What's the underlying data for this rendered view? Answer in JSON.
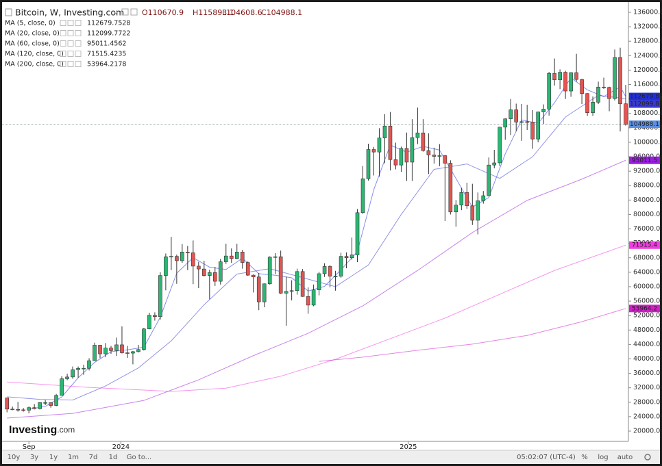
{
  "header": {
    "title": "Bitcoin, W, Investing.com",
    "ohlc_labels": [
      "O",
      "H",
      "L",
      "C"
    ]
  },
  "chart_data": {
    "type": "candlestick",
    "open": [
      29200,
      26100,
      26000,
      25900,
      25800,
      26500,
      26200,
      27900,
      27900,
      27100,
      29900,
      34500,
      35000,
      37000,
      37400,
      37400,
      39500,
      43800,
      41400,
      43000,
      42300,
      43900,
      41700,
      41600,
      42000,
      42600,
      48300,
      52100,
      51700,
      63100,
      68300,
      68400,
      67200,
      69600,
      69400,
      65700,
      64900,
      63100,
      63900,
      61500,
      66900,
      68500,
      67800,
      69600,
      66700,
      63200,
      62700,
      55800,
      60800,
      68200,
      68300,
      58200,
      58700,
      58900,
      64200,
      57300,
      54900,
      59100,
      63600,
      65600,
      62900,
      62900,
      68400,
      68000,
      68800,
      80500,
      89900,
      98000,
      97300,
      101200,
      104500,
      95200,
      93700,
      98300,
      94500,
      101300,
      102600,
      97700,
      96500,
      96100,
      96300,
      94200,
      80700,
      82600,
      86100,
      82400,
      78400,
      83800,
      85200,
      93700,
      94300,
      104200,
      106500,
      109000,
      105600,
      105700,
      105600,
      100900,
      108400,
      109200,
      119100,
      117300,
      119400,
      114200,
      119300,
      117400,
      113500,
      108200,
      111100,
      115300,
      115200,
      112100,
      123500,
      110670.9
    ],
    "high": [
      29300,
      26800,
      28100,
      26400,
      26800,
      27500,
      28000,
      28600,
      27900,
      30300,
      35200,
      35900,
      37900,
      37900,
      38400,
      40200,
      44500,
      43900,
      44400,
      43600,
      45900,
      49000,
      43600,
      42200,
      43900,
      48600,
      52800,
      52900,
      64000,
      69200,
      73800,
      68900,
      71800,
      71300,
      72800,
      66900,
      67200,
      64700,
      65500,
      67700,
      71900,
      70600,
      71900,
      70200,
      67000,
      63400,
      63800,
      60900,
      68400,
      69300,
      70000,
      62800,
      61800,
      65000,
      64900,
      59800,
      60600,
      64100,
      66500,
      66000,
      64400,
      69400,
      69500,
      73600,
      81500,
      93400,
      99600,
      98700,
      103900,
      107800,
      108400,
      99900,
      98800,
      102700,
      106400,
      109600,
      106400,
      102500,
      98500,
      99500,
      96500,
      95000,
      84000,
      87400,
      88800,
      88500,
      86100,
      86500,
      95800,
      97900,
      104300,
      106600,
      112000,
      110700,
      110600,
      110400,
      108900,
      108500,
      110500,
      119500,
      123200,
      120200,
      119800,
      119400,
      124500,
      117600,
      113600,
      112700,
      116800,
      117900,
      115400,
      125700,
      126200,
      115893.1
    ],
    "low": [
      25200,
      25800,
      25400,
      25400,
      24900,
      26000,
      26000,
      27200,
      26500,
      26900,
      29900,
      34100,
      34500,
      34800,
      35600,
      36800,
      39500,
      40200,
      40500,
      41400,
      40800,
      41500,
      40300,
      38500,
      41800,
      42300,
      48200,
      50600,
      50900,
      59000,
      64600,
      60800,
      66600,
      64600,
      60700,
      59600,
      62800,
      56500,
      60200,
      60600,
      66300,
      66600,
      67600,
      65000,
      63000,
      58400,
      53500,
      54300,
      60600,
      63500,
      58000,
      49200,
      56200,
      57800,
      57200,
      52500,
      54600,
      57600,
      62700,
      59800,
      58900,
      62500,
      65100,
      67500,
      66800,
      80200,
      89400,
      90800,
      90500,
      94200,
      92200,
      92500,
      91800,
      89300,
      89300,
      99500,
      97400,
      91200,
      94100,
      93400,
      78200,
      80000,
      76600,
      81200,
      81600,
      77100,
      74500,
      83000,
      85100,
      92800,
      93400,
      100700,
      102000,
      103100,
      100400,
      103400,
      98200,
      100000,
      105100,
      107400,
      115700,
      114700,
      112000,
      112600,
      116800,
      110600,
      107300,
      107300,
      110600,
      114800,
      108600,
      111600,
      103000,
      104608.6
    ],
    "close": [
      26100,
      26000,
      25900,
      25800,
      26500,
      26200,
      27900,
      27900,
      27100,
      29900,
      34500,
      35000,
      37000,
      37400,
      37400,
      39500,
      43800,
      41400,
      43000,
      42300,
      43900,
      41700,
      41600,
      42000,
      42600,
      48300,
      52100,
      51700,
      63100,
      68300,
      68400,
      67200,
      69600,
      69400,
      65700,
      64900,
      63100,
      63900,
      61500,
      66900,
      68500,
      67800,
      69600,
      66700,
      63200,
      62700,
      55800,
      60800,
      68200,
      68300,
      58200,
      58700,
      58900,
      64200,
      57300,
      54900,
      59100,
      63600,
      65600,
      62900,
      62900,
      68400,
      68000,
      68800,
      80500,
      89900,
      98000,
      97300,
      101200,
      104500,
      95200,
      93700,
      98300,
      94500,
      101300,
      102600,
      97700,
      96500,
      96100,
      96300,
      94200,
      80700,
      82600,
      86100,
      82400,
      78400,
      83800,
      85200,
      93700,
      94300,
      104200,
      106500,
      109000,
      105600,
      105700,
      105600,
      100900,
      108400,
      109200,
      119100,
      117300,
      119400,
      114200,
      119300,
      117400,
      113500,
      108200,
      111100,
      115300,
      115200,
      112100,
      123500,
      110670.9,
      104988.1
    ],
    "up_color": "#2bb673",
    "down_color": "#e45552",
    "wick_color": "#333333",
    "last_price_color": "#5b8fe3",
    "xlim": [
      -0.9,
      113.5
    ],
    "xticks": [
      {
        "value": 4,
        "label": "Sep"
      },
      {
        "value": 20.8,
        "label": "2024"
      },
      {
        "value": 73.3,
        "label": "2025"
      }
    ],
    "ylim": [
      17500,
      138000
    ],
    "yticks": [
      {
        "value": 20000,
        "label": "20000.0"
      },
      {
        "value": 24000,
        "label": "24000.0"
      },
      {
        "value": 28000,
        "label": "28000.0"
      },
      {
        "value": 32000,
        "label": "32000.0"
      },
      {
        "value": 36000,
        "label": "36000.0"
      },
      {
        "value": 40000,
        "label": "40000.0"
      },
      {
        "value": 44000,
        "label": "44000.0"
      },
      {
        "value": 48000,
        "label": "48000.0"
      },
      {
        "value": 52000,
        "label": "52000.0"
      },
      {
        "value": 56000,
        "label": "56000.0"
      },
      {
        "value": 60000,
        "label": "60000.0"
      },
      {
        "value": 64000,
        "label": "64000.0"
      },
      {
        "value": 68000,
        "label": "68000.0"
      },
      {
        "value": 72000,
        "label": "72000.0"
      },
      {
        "value": 76000,
        "label": "76000.0"
      },
      {
        "value": 80000,
        "label": "80000.0"
      },
      {
        "value": 84000,
        "label": "84000.0"
      },
      {
        "value": 88000,
        "label": "88000.0"
      },
      {
        "value": 92000,
        "label": "92000.0"
      },
      {
        "value": 96000,
        "label": "96000.0"
      },
      {
        "value": 100000,
        "label": "100000.0"
      },
      {
        "value": 104000,
        "label": "104000.0"
      },
      {
        "value": 108000,
        "label": "108000.0"
      },
      {
        "value": 112000,
        "label": "112000.0"
      },
      {
        "value": 116000,
        "label": "116000.0"
      },
      {
        "value": 120000,
        "label": "120000.0"
      },
      {
        "value": 124000,
        "label": "124000.0"
      },
      {
        "value": 128000,
        "label": "128000.0"
      },
      {
        "value": 132000,
        "label": "132000.0"
      },
      {
        "value": 136000,
        "label": "136000.0"
      }
    ],
    "moving_averages": [
      {
        "name": "MA (5, close, 0)",
        "color": "#1f2fe0",
        "tag": "112679.8",
        "x": [
          4,
          7,
          10,
          13,
          16,
          19,
          22,
          25,
          28,
          31,
          34,
          37,
          40,
          43,
          46,
          49,
          52,
          55,
          58,
          61,
          64,
          67,
          70,
          73,
          76,
          79,
          82,
          85,
          88,
          91,
          94,
          97,
          100,
          103,
          106,
          109,
          112,
          113
        ],
        "values": [
          26060,
          26860,
          29460,
          34760,
          39020,
          42000,
          42500,
          43240,
          51560,
          63740,
          68060,
          65400,
          64780,
          67900,
          63600,
          63160,
          62460,
          58800,
          60100,
          64680,
          69720,
          86900,
          99240,
          97240,
          98880,
          97840,
          89980,
          82040,
          84700,
          96780,
          106200,
          105240,
          110980,
          117860,
          114520,
          112660,
          115360,
          112679.7528
        ]
      },
      {
        "name": "MA (20, close, 0)",
        "color": "#3a3ad0",
        "tag": "112099.8",
        "x": [
          0,
          6,
          12,
          18,
          24,
          30,
          36,
          42,
          48,
          54,
          60,
          66,
          72,
          78,
          84,
          90,
          96,
          102,
          108,
          113
        ],
        "values": [
          29500,
          28800,
          28600,
          32500,
          37500,
          45000,
          55000,
          63500,
          65000,
          62500,
          60000,
          66000,
          80000,
          92500,
          94000,
          90000,
          96000,
          107000,
          113000,
          112099.7722
        ]
      },
      {
        "name": "MA (60, close, 0)",
        "color": "#9a1ee0",
        "tag": "95011.5",
        "x": [
          0,
          12,
          25,
          35,
          45,
          55,
          65,
          75,
          85,
          95,
          105,
          113
        ],
        "values": [
          23600,
          24900,
          28500,
          34200,
          40900,
          47100,
          54700,
          64500,
          75000,
          83900,
          89800,
          95011.4562
        ]
      },
      {
        "name": "MA (120, close, 0)",
        "color": "#f03ce0",
        "tag": "71515.4",
        "x": [
          0,
          15,
          30,
          40,
          50,
          60,
          70,
          80,
          90,
          100,
          113
        ],
        "values": [
          33600,
          32100,
          31000,
          31900,
          35200,
          39900,
          45600,
          51300,
          57900,
          64500,
          71515.4235
        ]
      },
      {
        "name": "MA (200, close, 0)",
        "color": "#d21ec8",
        "tag": "53964.2",
        "x": [
          57,
          65,
          75,
          85,
          95,
          105,
          113
        ],
        "values": [
          39300,
          40500,
          42400,
          44100,
          46500,
          50300,
          53964.2178
        ]
      }
    ]
  },
  "logo": {
    "brand": "Investing",
    "suffix": ".com"
  },
  "toolbar": {
    "ranges": [
      "10y",
      "3y",
      "1y",
      "1m",
      "7d",
      "1d",
      "Go to..."
    ],
    "time": "05:02:07 (UTC-4)",
    "options": [
      "%",
      "log",
      "auto"
    ]
  }
}
